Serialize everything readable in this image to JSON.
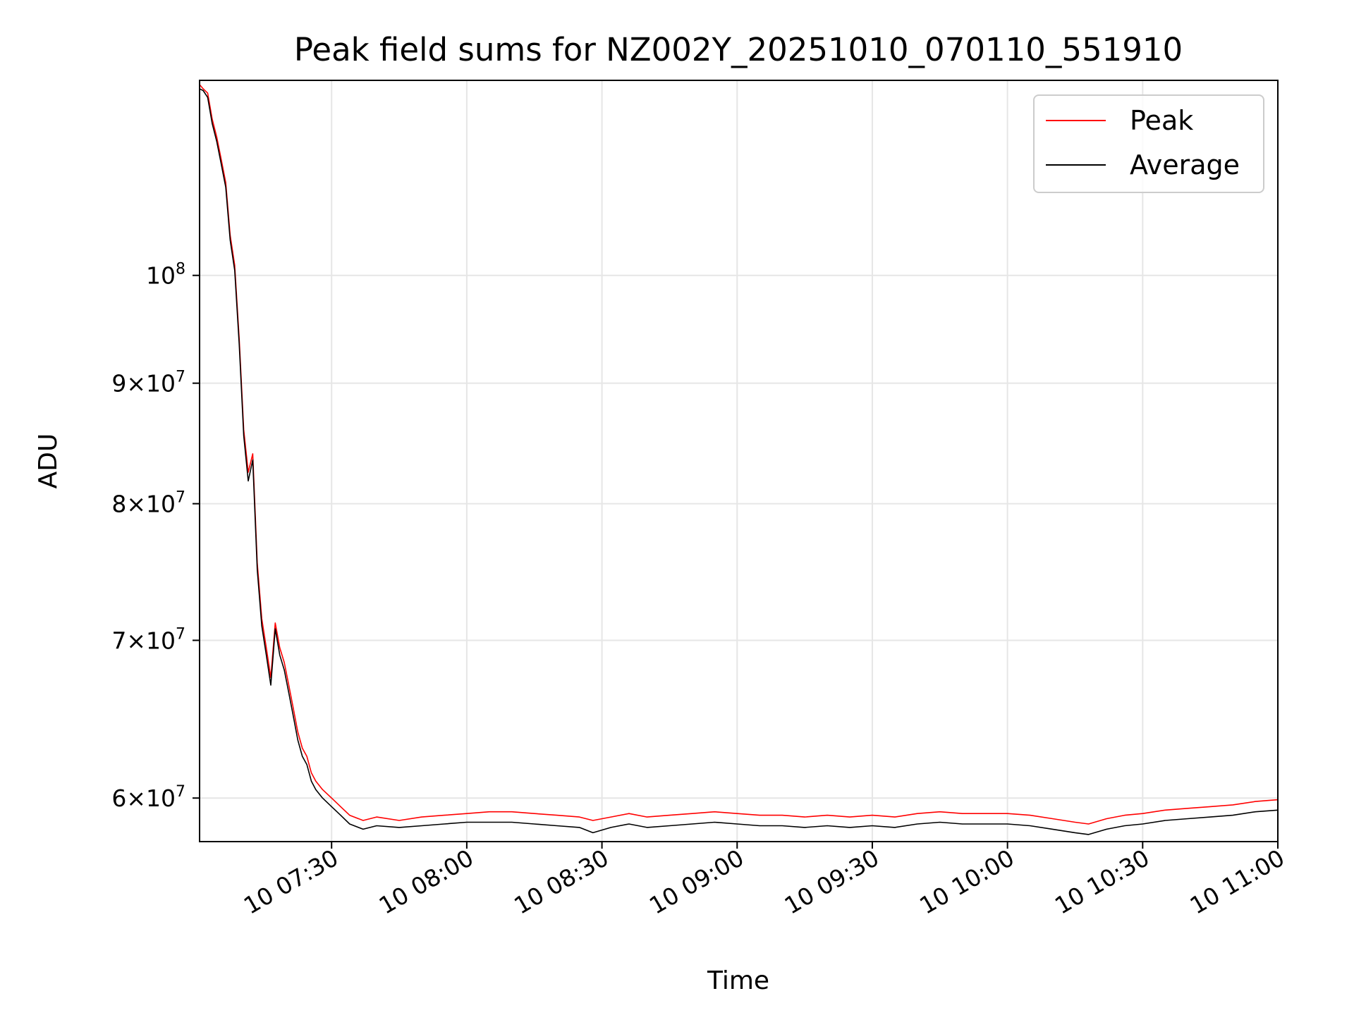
{
  "chart_data": {
    "type": "line",
    "title": "Peak field sums for NZ002Y_20251010_070110_551910",
    "xlabel": "Time",
    "ylabel": "ADU",
    "yscale": "log",
    "grid": true,
    "legend_position": "top-right",
    "x_range_minutes": [
      420.7,
      660.0
    ],
    "ylim": [
      57500000,
      121000000
    ],
    "x_ticks": [
      {
        "minute": 450,
        "label": "10 07:30"
      },
      {
        "minute": 480,
        "label": "10 08:00"
      },
      {
        "minute": 510,
        "label": "10 08:30"
      },
      {
        "minute": 540,
        "label": "10 09:00"
      },
      {
        "minute": 570,
        "label": "10 09:30"
      },
      {
        "minute": 600,
        "label": "10 10:00"
      },
      {
        "minute": 630,
        "label": "10 10:30"
      },
      {
        "minute": 660,
        "label": "10 11:00"
      }
    ],
    "y_ticks": [
      {
        "value": 60000000,
        "mantissa": "6",
        "exponent": "7"
      },
      {
        "value": 70000000,
        "mantissa": "7",
        "exponent": "7"
      },
      {
        "value": 80000000,
        "mantissa": "8",
        "exponent": "7"
      },
      {
        "value": 90000000,
        "mantissa": "9",
        "exponent": "7"
      },
      {
        "value": 100000000,
        "mantissa": "",
        "exponent": "8"
      }
    ],
    "series": [
      {
        "name": "Peak",
        "color": "#ff0000",
        "points": [
          [
            420.7,
            120500000
          ],
          [
            421.5,
            120000000
          ],
          [
            422.5,
            119500000
          ],
          [
            423.5,
            116500000
          ],
          [
            424.5,
            114500000
          ],
          [
            425.5,
            112000000
          ],
          [
            426.5,
            109500000
          ],
          [
            427.5,
            104000000
          ],
          [
            428.5,
            101000000
          ],
          [
            429.5,
            94000000
          ],
          [
            430.5,
            86000000
          ],
          [
            431.5,
            82500000
          ],
          [
            432.5,
            84000000
          ],
          [
            433.5,
            75500000
          ],
          [
            434.5,
            71500000
          ],
          [
            435.5,
            69500000
          ],
          [
            436.5,
            67500000
          ],
          [
            437.5,
            71200000
          ],
          [
            438.5,
            69500000
          ],
          [
            439.5,
            68500000
          ],
          [
            440.5,
            67000000
          ],
          [
            441.5,
            65500000
          ],
          [
            442.5,
            64000000
          ],
          [
            443.5,
            63000000
          ],
          [
            444.5,
            62500000
          ],
          [
            445.5,
            61500000
          ],
          [
            446.5,
            61000000
          ],
          [
            448.0,
            60500000
          ],
          [
            450.0,
            60000000
          ],
          [
            452.0,
            59500000
          ],
          [
            454.0,
            59000000
          ],
          [
            457.0,
            58700000
          ],
          [
            460.0,
            58900000
          ],
          [
            465.0,
            58700000
          ],
          [
            470.0,
            58900000
          ],
          [
            475.0,
            59000000
          ],
          [
            480.0,
            59100000
          ],
          [
            485.0,
            59200000
          ],
          [
            490.0,
            59200000
          ],
          [
            495.0,
            59100000
          ],
          [
            500.0,
            59000000
          ],
          [
            505.0,
            58900000
          ],
          [
            508.0,
            58700000
          ],
          [
            512.0,
            58900000
          ],
          [
            516.0,
            59100000
          ],
          [
            520.0,
            58900000
          ],
          [
            525.0,
            59000000
          ],
          [
            530.0,
            59100000
          ],
          [
            535.0,
            59200000
          ],
          [
            540.0,
            59100000
          ],
          [
            545.0,
            59000000
          ],
          [
            550.0,
            59000000
          ],
          [
            555.0,
            58900000
          ],
          [
            560.0,
            59000000
          ],
          [
            565.0,
            58900000
          ],
          [
            570.0,
            59000000
          ],
          [
            575.0,
            58900000
          ],
          [
            580.0,
            59100000
          ],
          [
            585.0,
            59200000
          ],
          [
            590.0,
            59100000
          ],
          [
            595.0,
            59100000
          ],
          [
            600.0,
            59100000
          ],
          [
            605.0,
            59000000
          ],
          [
            610.0,
            58800000
          ],
          [
            615.0,
            58600000
          ],
          [
            618.0,
            58500000
          ],
          [
            622.0,
            58800000
          ],
          [
            626.0,
            59000000
          ],
          [
            630.0,
            59100000
          ],
          [
            635.0,
            59300000
          ],
          [
            640.0,
            59400000
          ],
          [
            645.0,
            59500000
          ],
          [
            650.0,
            59600000
          ],
          [
            655.0,
            59800000
          ],
          [
            660.0,
            59900000
          ]
        ]
      },
      {
        "name": "Average",
        "color": "#000000",
        "points": [
          [
            420.7,
            120000000
          ],
          [
            421.5,
            119800000
          ],
          [
            422.5,
            119000000
          ],
          [
            423.5,
            116000000
          ],
          [
            424.5,
            114000000
          ],
          [
            425.5,
            111500000
          ],
          [
            426.5,
            109000000
          ],
          [
            427.5,
            103500000
          ],
          [
            428.5,
            100500000
          ],
          [
            429.5,
            93500000
          ],
          [
            430.5,
            85500000
          ],
          [
            431.5,
            81800000
          ],
          [
            432.5,
            83500000
          ],
          [
            433.5,
            75000000
          ],
          [
            434.5,
            71000000
          ],
          [
            435.5,
            69000000
          ],
          [
            436.5,
            67000000
          ],
          [
            437.5,
            70800000
          ],
          [
            438.5,
            69000000
          ],
          [
            439.5,
            68000000
          ],
          [
            440.5,
            66500000
          ],
          [
            441.5,
            65000000
          ],
          [
            442.5,
            63500000
          ],
          [
            443.5,
            62500000
          ],
          [
            444.5,
            62000000
          ],
          [
            445.5,
            61000000
          ],
          [
            446.5,
            60500000
          ],
          [
            448.0,
            60000000
          ],
          [
            450.0,
            59500000
          ],
          [
            452.0,
            59000000
          ],
          [
            454.0,
            58500000
          ],
          [
            457.0,
            58200000
          ],
          [
            460.0,
            58400000
          ],
          [
            465.0,
            58300000
          ],
          [
            470.0,
            58400000
          ],
          [
            475.0,
            58500000
          ],
          [
            480.0,
            58600000
          ],
          [
            485.0,
            58600000
          ],
          [
            490.0,
            58600000
          ],
          [
            495.0,
            58500000
          ],
          [
            500.0,
            58400000
          ],
          [
            505.0,
            58300000
          ],
          [
            508.0,
            58000000
          ],
          [
            512.0,
            58300000
          ],
          [
            516.0,
            58500000
          ],
          [
            520.0,
            58300000
          ],
          [
            525.0,
            58400000
          ],
          [
            530.0,
            58500000
          ],
          [
            535.0,
            58600000
          ],
          [
            540.0,
            58500000
          ],
          [
            545.0,
            58400000
          ],
          [
            550.0,
            58400000
          ],
          [
            555.0,
            58300000
          ],
          [
            560.0,
            58400000
          ],
          [
            565.0,
            58300000
          ],
          [
            570.0,
            58400000
          ],
          [
            575.0,
            58300000
          ],
          [
            580.0,
            58500000
          ],
          [
            585.0,
            58600000
          ],
          [
            590.0,
            58500000
          ],
          [
            595.0,
            58500000
          ],
          [
            600.0,
            58500000
          ],
          [
            605.0,
            58400000
          ],
          [
            610.0,
            58200000
          ],
          [
            615.0,
            58000000
          ],
          [
            618.0,
            57900000
          ],
          [
            622.0,
            58200000
          ],
          [
            626.0,
            58400000
          ],
          [
            630.0,
            58500000
          ],
          [
            635.0,
            58700000
          ],
          [
            640.0,
            58800000
          ],
          [
            645.0,
            58900000
          ],
          [
            650.0,
            59000000
          ],
          [
            655.0,
            59200000
          ],
          [
            660.0,
            59300000
          ]
        ]
      }
    ]
  }
}
